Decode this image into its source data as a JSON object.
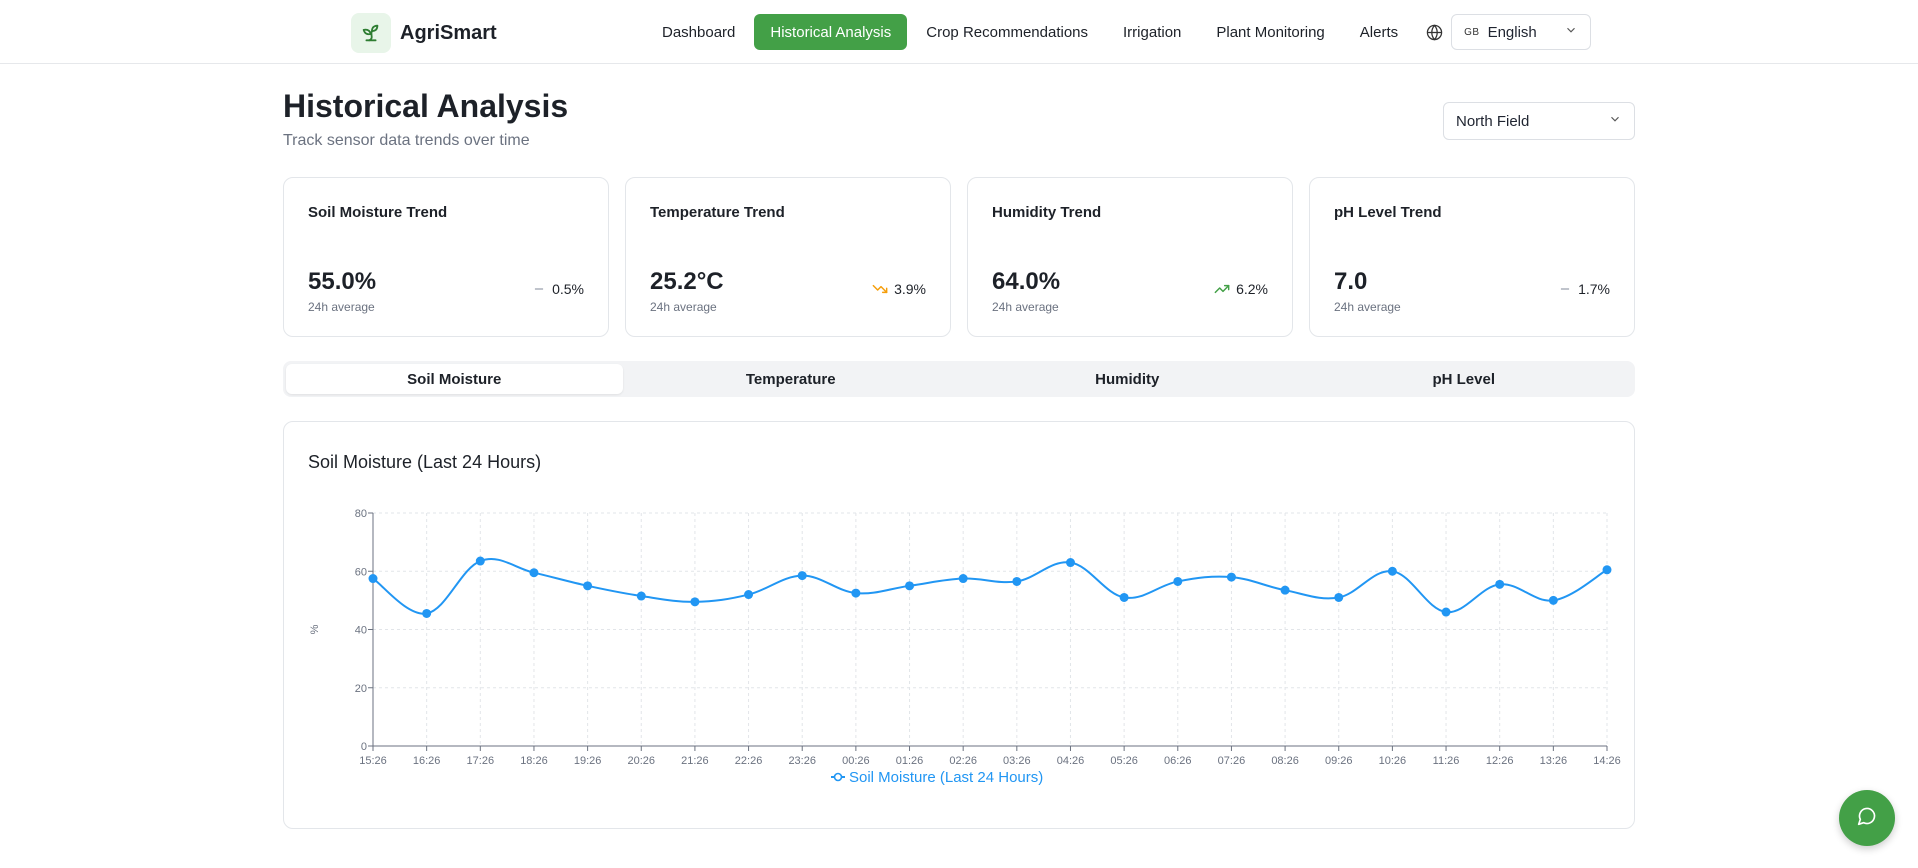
{
  "app": {
    "name": "AgriSmart",
    "logo_icon": "sprout-icon"
  },
  "nav": {
    "items": [
      {
        "label": "Dashboard",
        "active": false
      },
      {
        "label": "Historical Analysis",
        "active": true
      },
      {
        "label": "Crop Recommendations",
        "active": false
      },
      {
        "label": "Irrigation",
        "active": false
      },
      {
        "label": "Plant Monitoring",
        "active": false
      },
      {
        "label": "Alerts",
        "active": false
      }
    ],
    "language": {
      "flag": "GB",
      "selected": "English"
    }
  },
  "page": {
    "title": "Historical Analysis",
    "subtitle": "Track sensor data trends over time",
    "field_select": "North Field"
  },
  "stats": [
    {
      "title": "Soil Moisture Trend",
      "value": "55.0%",
      "sub": "24h average",
      "trend": "0.5%",
      "direction": "flat"
    },
    {
      "title": "Temperature Trend",
      "value": "25.2°C",
      "sub": "24h average",
      "trend": "3.9%",
      "direction": "down"
    },
    {
      "title": "Humidity Trend",
      "value": "64.0%",
      "sub": "24h average",
      "trend": "6.2%",
      "direction": "up"
    },
    {
      "title": "pH Level Trend",
      "value": "7.0",
      "sub": "24h average",
      "trend": "1.7%",
      "direction": "flat"
    }
  ],
  "tabs": [
    {
      "label": "Soil Moisture",
      "active": true
    },
    {
      "label": "Temperature",
      "active": false
    },
    {
      "label": "Humidity",
      "active": false
    },
    {
      "label": "pH Level",
      "active": false
    }
  ],
  "colors": {
    "accent": "#43a047",
    "series": "#2196f3",
    "trend_down": "#f59e0b",
    "trend_up": "#43a047",
    "trend_flat": "#9ca3af"
  },
  "chart_data": {
    "type": "line",
    "title": "Soil Moisture (Last 24 Hours)",
    "xlabel": "",
    "ylabel": "%",
    "ylim": [
      0,
      80
    ],
    "yticks": [
      0,
      20,
      40,
      60,
      80
    ],
    "grid": true,
    "legend_position": "bottom",
    "categories": [
      "15:26",
      "16:26",
      "17:26",
      "18:26",
      "19:26",
      "20:26",
      "21:26",
      "22:26",
      "23:26",
      "00:26",
      "01:26",
      "02:26",
      "03:26",
      "04:26",
      "05:26",
      "06:26",
      "07:26",
      "08:26",
      "09:26",
      "10:26",
      "11:26",
      "12:26",
      "13:26",
      "14:26"
    ],
    "series": [
      {
        "name": "Soil Moisture (Last 24 Hours)",
        "values": [
          57.5,
          45.5,
          63.5,
          59.5,
          55,
          51.5,
          49.5,
          52,
          58.5,
          52.5,
          55,
          57.5,
          56.5,
          63,
          51,
          56.5,
          58,
          53.5,
          51,
          60,
          46,
          55.5,
          50,
          60.5
        ]
      }
    ]
  },
  "fab": {
    "icon": "chat-bubble-icon"
  }
}
